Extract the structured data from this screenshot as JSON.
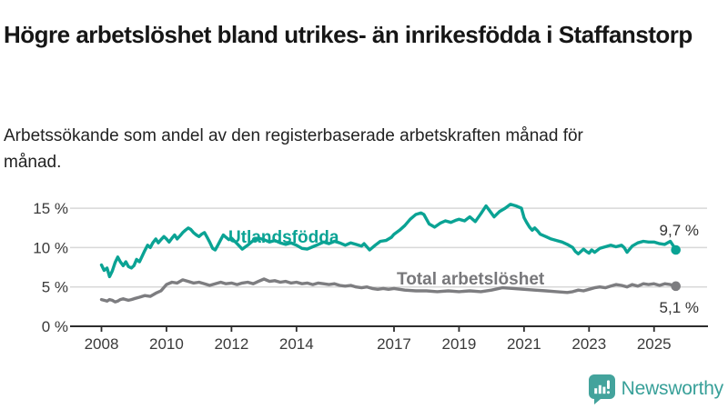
{
  "header": {
    "title": "Högre arbetslöshet bland utrikes- än inrikesfödda i Staffanstorp",
    "subtitle": "Arbetssökande som andel av den registerbaserade arbetskraften månad för månad."
  },
  "colors": {
    "foreign_line": "#0aa394",
    "total_line": "#7d7d80",
    "axis": "#2d2d2d",
    "gridline": "#d8d8d8",
    "tick_text": "#3a3a3a",
    "end_label_text": "#333333",
    "logo_teal": "#43a39c"
  },
  "chart_data": {
    "type": "line",
    "title": "Högre arbetslöshet bland utrikes- än inrikesfödda i Staffanstorp",
    "subtitle": "Arbetssökande som andel av den registerbaserade arbetskraften månad för månad.",
    "xlabel": "",
    "ylabel": "",
    "xlim": [
      2007.8,
      2026.3
    ],
    "ylim": [
      0,
      16.2
    ],
    "grid": "horizontal",
    "legend_position": "inline-labels",
    "x_ticks": [
      2008,
      2010,
      2012,
      2014,
      2017,
      2019,
      2021,
      2023,
      2025
    ],
    "y_ticks": [
      {
        "value": 0,
        "label": "0 %"
      },
      {
        "value": 5,
        "label": "5 %"
      },
      {
        "value": 10,
        "label": "10 %"
      },
      {
        "value": 15,
        "label": "15 %"
      }
    ],
    "series": [
      {
        "name": "Utlandsfödda",
        "color": "#0aa394",
        "end_label": "9,7 %",
        "end_value": 9.7,
        "points": [
          [
            2008.0,
            7.8
          ],
          [
            2008.08,
            7.1
          ],
          [
            2008.17,
            7.4
          ],
          [
            2008.25,
            6.3
          ],
          [
            2008.33,
            7.0
          ],
          [
            2008.42,
            8.1
          ],
          [
            2008.5,
            8.8
          ],
          [
            2008.58,
            8.2
          ],
          [
            2008.67,
            7.7
          ],
          [
            2008.75,
            8.2
          ],
          [
            2008.83,
            7.6
          ],
          [
            2008.92,
            7.4
          ],
          [
            2009.0,
            7.7
          ],
          [
            2009.08,
            8.5
          ],
          [
            2009.17,
            8.2
          ],
          [
            2009.25,
            8.9
          ],
          [
            2009.33,
            9.6
          ],
          [
            2009.42,
            10.3
          ],
          [
            2009.5,
            10.0
          ],
          [
            2009.58,
            10.6
          ],
          [
            2009.67,
            11.1
          ],
          [
            2009.75,
            10.6
          ],
          [
            2009.83,
            11.0
          ],
          [
            2009.92,
            11.4
          ],
          [
            2010.0,
            11.1
          ],
          [
            2010.08,
            10.7
          ],
          [
            2010.17,
            11.2
          ],
          [
            2010.25,
            11.6
          ],
          [
            2010.33,
            11.1
          ],
          [
            2010.42,
            11.5
          ],
          [
            2010.5,
            11.9
          ],
          [
            2010.58,
            12.2
          ],
          [
            2010.67,
            12.5
          ],
          [
            2010.75,
            12.3
          ],
          [
            2010.83,
            11.9
          ],
          [
            2010.92,
            11.6
          ],
          [
            2011.0,
            11.4
          ],
          [
            2011.08,
            11.7
          ],
          [
            2011.17,
            11.9
          ],
          [
            2011.25,
            11.3
          ],
          [
            2011.33,
            10.7
          ],
          [
            2011.42,
            9.9
          ],
          [
            2011.5,
            9.7
          ],
          [
            2011.58,
            10.3
          ],
          [
            2011.67,
            11.0
          ],
          [
            2011.75,
            11.6
          ],
          [
            2011.83,
            11.3
          ],
          [
            2011.92,
            11.0
          ],
          [
            2012.0,
            11.2
          ],
          [
            2012.17,
            10.5
          ],
          [
            2012.33,
            9.8
          ],
          [
            2012.5,
            10.3
          ],
          [
            2012.67,
            10.9
          ],
          [
            2012.83,
            11.2
          ],
          [
            2013.0,
            11.0
          ],
          [
            2013.17,
            10.7
          ],
          [
            2013.33,
            10.9
          ],
          [
            2013.5,
            10.6
          ],
          [
            2013.67,
            10.4
          ],
          [
            2013.83,
            10.6
          ],
          [
            2014.0,
            10.3
          ],
          [
            2014.17,
            9.9
          ],
          [
            2014.33,
            9.8
          ],
          [
            2014.5,
            10.1
          ],
          [
            2014.67,
            10.4
          ],
          [
            2014.83,
            10.7
          ],
          [
            2015.0,
            10.5
          ],
          [
            2015.17,
            10.8
          ],
          [
            2015.33,
            10.6
          ],
          [
            2015.5,
            10.3
          ],
          [
            2015.67,
            10.6
          ],
          [
            2015.83,
            10.4
          ],
          [
            2016.0,
            10.2
          ],
          [
            2016.08,
            10.5
          ],
          [
            2016.25,
            9.7
          ],
          [
            2016.42,
            10.3
          ],
          [
            2016.58,
            10.8
          ],
          [
            2016.75,
            10.9
          ],
          [
            2016.92,
            11.3
          ],
          [
            2017.0,
            11.7
          ],
          [
            2017.17,
            12.2
          ],
          [
            2017.33,
            12.8
          ],
          [
            2017.5,
            13.6
          ],
          [
            2017.67,
            14.2
          ],
          [
            2017.83,
            14.4
          ],
          [
            2017.92,
            14.2
          ],
          [
            2018.08,
            13.0
          ],
          [
            2018.25,
            12.6
          ],
          [
            2018.42,
            13.1
          ],
          [
            2018.58,
            13.4
          ],
          [
            2018.75,
            13.2
          ],
          [
            2018.92,
            13.5
          ],
          [
            2019.0,
            13.6
          ],
          [
            2019.17,
            13.4
          ],
          [
            2019.33,
            13.9
          ],
          [
            2019.5,
            13.3
          ],
          [
            2019.67,
            14.3
          ],
          [
            2019.83,
            15.3
          ],
          [
            2019.92,
            14.8
          ],
          [
            2020.08,
            13.9
          ],
          [
            2020.25,
            14.6
          ],
          [
            2020.42,
            15.0
          ],
          [
            2020.58,
            15.5
          ],
          [
            2020.75,
            15.3
          ],
          [
            2020.92,
            15.0
          ],
          [
            2021.0,
            13.8
          ],
          [
            2021.08,
            13.2
          ],
          [
            2021.17,
            12.6
          ],
          [
            2021.25,
            12.2
          ],
          [
            2021.33,
            12.5
          ],
          [
            2021.42,
            12.1
          ],
          [
            2021.5,
            11.7
          ],
          [
            2021.67,
            11.4
          ],
          [
            2021.83,
            11.1
          ],
          [
            2022.0,
            10.9
          ],
          [
            2022.17,
            10.7
          ],
          [
            2022.33,
            10.4
          ],
          [
            2022.5,
            10.0
          ],
          [
            2022.58,
            9.5
          ],
          [
            2022.67,
            9.2
          ],
          [
            2022.83,
            9.8
          ],
          [
            2022.92,
            9.5
          ],
          [
            2023.0,
            9.3
          ],
          [
            2023.08,
            9.7
          ],
          [
            2023.17,
            9.4
          ],
          [
            2023.33,
            9.9
          ],
          [
            2023.5,
            10.1
          ],
          [
            2023.67,
            10.3
          ],
          [
            2023.83,
            10.1
          ],
          [
            2024.0,
            10.3
          ],
          [
            2024.08,
            10.0
          ],
          [
            2024.17,
            9.4
          ],
          [
            2024.33,
            10.2
          ],
          [
            2024.5,
            10.6
          ],
          [
            2024.67,
            10.8
          ],
          [
            2024.83,
            10.7
          ],
          [
            2025.0,
            10.7
          ],
          [
            2025.17,
            10.5
          ],
          [
            2025.33,
            10.4
          ],
          [
            2025.5,
            10.8
          ],
          [
            2025.58,
            10.3
          ],
          [
            2025.67,
            9.7
          ]
        ]
      },
      {
        "name": "Total arbetslöshet",
        "color": "#7d7d80",
        "end_label": "5,1 %",
        "end_value": 5.1,
        "points": [
          [
            2008.0,
            3.4
          ],
          [
            2008.08,
            3.3
          ],
          [
            2008.17,
            3.2
          ],
          [
            2008.25,
            3.4
          ],
          [
            2008.33,
            3.3
          ],
          [
            2008.42,
            3.1
          ],
          [
            2008.5,
            3.2
          ],
          [
            2008.58,
            3.4
          ],
          [
            2008.67,
            3.5
          ],
          [
            2008.75,
            3.4
          ],
          [
            2008.83,
            3.3
          ],
          [
            2008.92,
            3.4
          ],
          [
            2009.0,
            3.5
          ],
          [
            2009.17,
            3.7
          ],
          [
            2009.33,
            3.9
          ],
          [
            2009.5,
            3.8
          ],
          [
            2009.67,
            4.2
          ],
          [
            2009.83,
            4.5
          ],
          [
            2010.0,
            5.3
          ],
          [
            2010.17,
            5.6
          ],
          [
            2010.33,
            5.5
          ],
          [
            2010.5,
            5.9
          ],
          [
            2010.67,
            5.7
          ],
          [
            2010.83,
            5.5
          ],
          [
            2011.0,
            5.6
          ],
          [
            2011.17,
            5.4
          ],
          [
            2011.33,
            5.2
          ],
          [
            2011.5,
            5.4
          ],
          [
            2011.67,
            5.6
          ],
          [
            2011.83,
            5.4
          ],
          [
            2012.0,
            5.5
          ],
          [
            2012.17,
            5.3
          ],
          [
            2012.33,
            5.5
          ],
          [
            2012.5,
            5.6
          ],
          [
            2012.67,
            5.4
          ],
          [
            2012.83,
            5.7
          ],
          [
            2013.0,
            6.0
          ],
          [
            2013.17,
            5.7
          ],
          [
            2013.33,
            5.8
          ],
          [
            2013.5,
            5.6
          ],
          [
            2013.67,
            5.7
          ],
          [
            2013.83,
            5.5
          ],
          [
            2014.0,
            5.6
          ],
          [
            2014.17,
            5.4
          ],
          [
            2014.33,
            5.5
          ],
          [
            2014.5,
            5.3
          ],
          [
            2014.67,
            5.5
          ],
          [
            2014.83,
            5.4
          ],
          [
            2015.0,
            5.3
          ],
          [
            2015.17,
            5.4
          ],
          [
            2015.33,
            5.2
          ],
          [
            2015.5,
            5.1
          ],
          [
            2015.67,
            5.2
          ],
          [
            2015.83,
            5.0
          ],
          [
            2016.0,
            4.9
          ],
          [
            2016.17,
            5.0
          ],
          [
            2016.33,
            4.8
          ],
          [
            2016.5,
            4.7
          ],
          [
            2016.67,
            4.8
          ],
          [
            2016.83,
            4.7
          ],
          [
            2017.0,
            4.8
          ],
          [
            2017.33,
            4.6
          ],
          [
            2017.67,
            4.5
          ],
          [
            2018.0,
            4.5
          ],
          [
            2018.33,
            4.4
          ],
          [
            2018.67,
            4.5
          ],
          [
            2019.0,
            4.4
          ],
          [
            2019.33,
            4.5
          ],
          [
            2019.67,
            4.4
          ],
          [
            2020.0,
            4.6
          ],
          [
            2020.33,
            4.9
          ],
          [
            2020.67,
            4.8
          ],
          [
            2021.0,
            4.7
          ],
          [
            2021.33,
            4.6
          ],
          [
            2021.67,
            4.5
          ],
          [
            2022.0,
            4.4
          ],
          [
            2022.33,
            4.3
          ],
          [
            2022.5,
            4.4
          ],
          [
            2022.67,
            4.6
          ],
          [
            2022.83,
            4.5
          ],
          [
            2023.0,
            4.7
          ],
          [
            2023.17,
            4.9
          ],
          [
            2023.33,
            5.0
          ],
          [
            2023.5,
            4.9
          ],
          [
            2023.67,
            5.1
          ],
          [
            2023.83,
            5.3
          ],
          [
            2024.0,
            5.2
          ],
          [
            2024.17,
            5.0
          ],
          [
            2024.33,
            5.3
          ],
          [
            2024.5,
            5.1
          ],
          [
            2024.67,
            5.4
          ],
          [
            2024.83,
            5.3
          ],
          [
            2025.0,
            5.4
          ],
          [
            2025.17,
            5.2
          ],
          [
            2025.33,
            5.4
          ],
          [
            2025.5,
            5.3
          ],
          [
            2025.67,
            5.1
          ]
        ]
      }
    ]
  },
  "footer": {
    "brand": "Newsworthy"
  }
}
